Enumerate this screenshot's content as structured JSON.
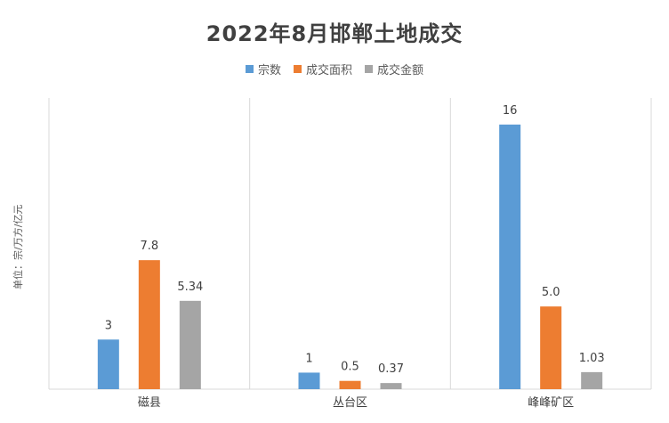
{
  "chart_data": {
    "type": "bar",
    "title": "2022年8月邯郸土地成交",
    "ylabel": "单位：宗/万方/亿元",
    "xlabel": "",
    "categories": [
      "磁县",
      "丛台区",
      "峰峰矿区"
    ],
    "series": [
      {
        "name": "宗数",
        "color": "#5B9BD5",
        "values": [
          3,
          1,
          16
        ],
        "labels": [
          "3",
          "1",
          "16"
        ]
      },
      {
        "name": "成交面积",
        "color": "#ED7D31",
        "values": [
          7.8,
          0.5,
          5.0
        ],
        "labels": [
          "7.8",
          "0.5",
          "5.0"
        ]
      },
      {
        "name": "成交金额",
        "color": "#A5A5A5",
        "values": [
          5.34,
          0.37,
          1.03
        ],
        "labels": [
          "5.34",
          "0.37",
          "1.03"
        ]
      }
    ],
    "ylim": [
      0,
      17.5
    ],
    "grid": false,
    "legend_position": "top"
  }
}
